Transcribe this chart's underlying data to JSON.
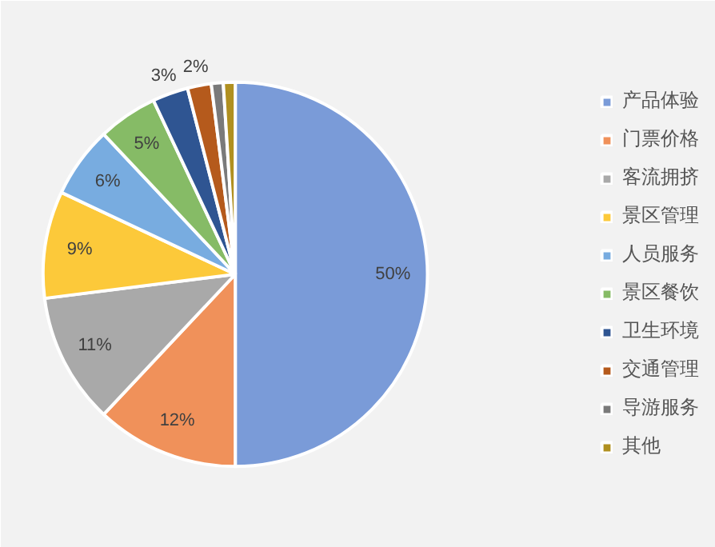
{
  "chart_data": {
    "type": "pie",
    "categories": [
      "产品体验",
      "门票价格",
      "客流拥挤",
      "景区管理",
      "人员服务",
      "景区餐饮",
      "卫生环境",
      "交通管理",
      "导游服务",
      "其他"
    ],
    "values": [
      50,
      12,
      11,
      9,
      6,
      5,
      3,
      2,
      1,
      1
    ],
    "value_labels": [
      "50%",
      "12%",
      "11%",
      "9%",
      "6%",
      "5%",
      "3%",
      "2%",
      null,
      null
    ],
    "colors": [
      "#7a9bd8",
      "#f0915a",
      "#a9a9a9",
      "#fcc93a",
      "#78ace0",
      "#86bb66",
      "#2f5592",
      "#b55a1c",
      "#7a7a7a",
      "#b09020"
    ],
    "legend": "right"
  }
}
